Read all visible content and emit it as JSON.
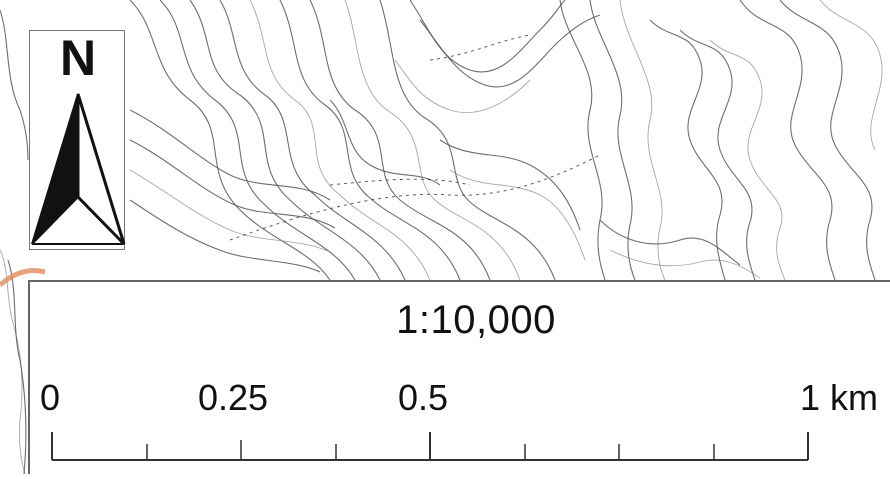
{
  "map": {
    "north_label": "N",
    "scale_ratio": "1:10,000",
    "scale_bar": {
      "labels": [
        "0",
        "0.25",
        "0.5",
        "1 km"
      ],
      "minor_ticks": 8
    },
    "colors": {
      "contour": "#555555",
      "panel": "#ffffff",
      "river_highlight": "#e08a5c"
    }
  }
}
